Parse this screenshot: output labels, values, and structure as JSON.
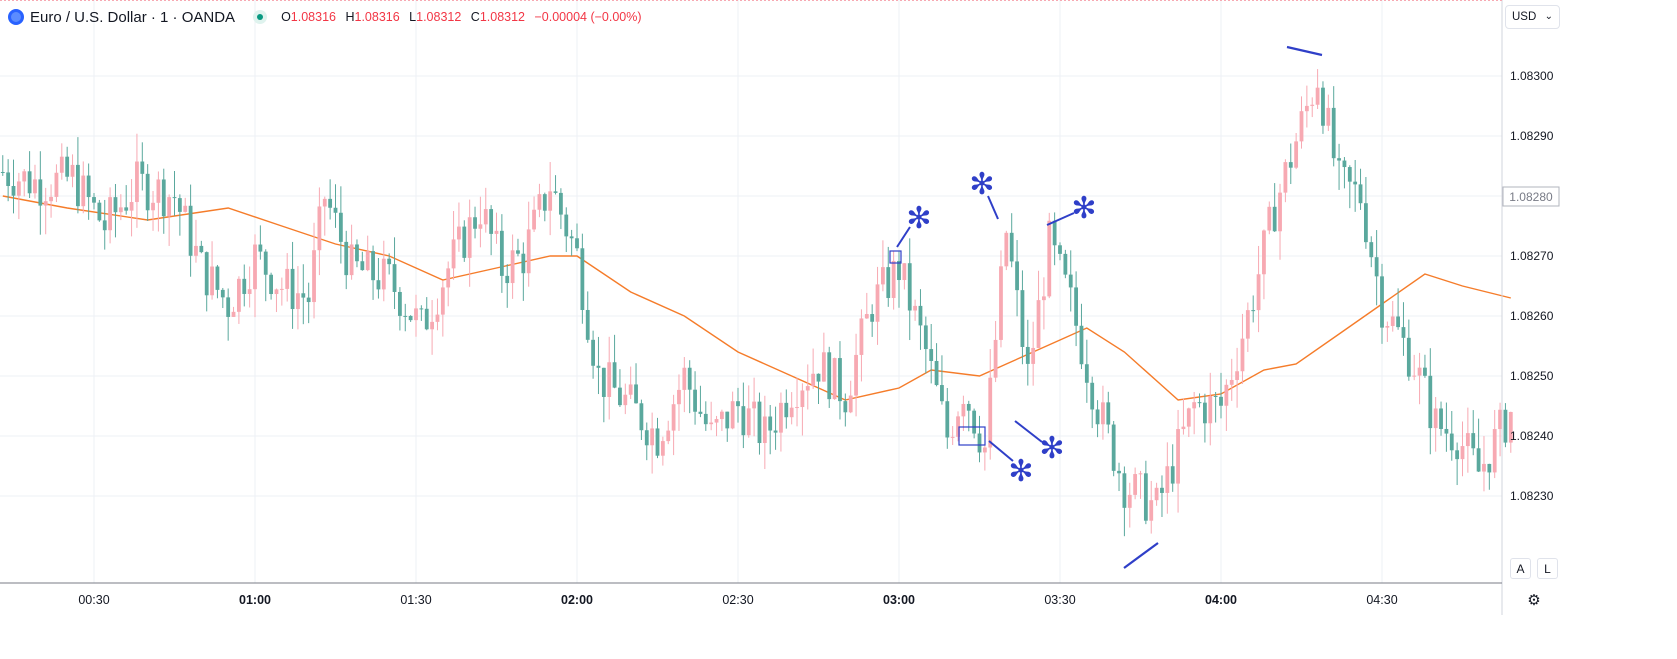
{
  "legend": {
    "title": "Euro / U.S. Dollar · 1 · OANDA",
    "open_label": "O",
    "open": "1.08316",
    "high_label": "H",
    "high": "1.08316",
    "low_label": "L",
    "low": "1.08312",
    "close_label": "C",
    "close": "1.08312",
    "change": "−0.00004 (−0.00%)"
  },
  "currency_select": {
    "value": "USD"
  },
  "price_scale": {
    "current_price_label": "1.08280",
    "auto_button": "A",
    "log_button": "L"
  },
  "colors": {
    "up": "#f7a9b2",
    "down": "#5aa89d",
    "moving_average": "#f57c2a",
    "annotation": "#2f3fc8",
    "grid": "#eef1f5"
  },
  "chart_data": {
    "type": "candlestick",
    "series": [
      {
        "name": "EURUSD 1-minute candles"
      },
      {
        "name": "Moving average"
      }
    ],
    "y_ticks": [
      "1.08300",
      "1.08290",
      "1.08280",
      "1.08270",
      "1.08260",
      "1.08250",
      "1.08240",
      "1.08230"
    ],
    "ylim": [
      1.08222,
      1.08312
    ],
    "x_ticks": [
      {
        "label": "00:30",
        "bold": false
      },
      {
        "label": "01:00",
        "bold": true
      },
      {
        "label": "01:30",
        "bold": false
      },
      {
        "label": "02:00",
        "bold": true
      },
      {
        "label": "02:30",
        "bold": false
      },
      {
        "label": "03:00",
        "bold": true
      },
      {
        "label": "03:30",
        "bold": false
      },
      {
        "label": "04:00",
        "bold": true
      },
      {
        "label": "04:30",
        "bold": false
      }
    ],
    "x_start": "00:13",
    "x_end": "04:54",
    "close_anchors": [
      [
        "00:13",
        1.08284
      ],
      [
        "00:20",
        1.08282
      ],
      [
        "00:26",
        1.08283
      ],
      [
        "00:32",
        1.08275
      ],
      [
        "00:38",
        1.08282
      ],
      [
        "00:45",
        1.0828
      ],
      [
        "00:50",
        1.08268
      ],
      [
        "00:55",
        1.08262
      ],
      [
        "01:00",
        1.0827
      ],
      [
        "01:05",
        1.08265
      ],
      [
        "01:10",
        1.08263
      ],
      [
        "01:13",
        1.0828
      ],
      [
        "01:18",
        1.08268
      ],
      [
        "01:25",
        1.08266
      ],
      [
        "01:31",
        1.08258
      ],
      [
        "01:36",
        1.08268
      ],
      [
        "01:42",
        1.08278
      ],
      [
        "01:46",
        1.08268
      ],
      [
        "01:50",
        1.0827
      ],
      [
        "01:55",
        1.08282
      ],
      [
        "02:00",
        1.0827
      ],
      [
        "02:04",
        1.0825
      ],
      [
        "02:10",
        1.08245
      ],
      [
        "02:15",
        1.0824
      ],
      [
        "02:20",
        1.0825
      ],
      [
        "02:25",
        1.0824
      ],
      [
        "02:30",
        1.08245
      ],
      [
        "02:35",
        1.0824
      ],
      [
        "02:40",
        1.08248
      ],
      [
        "02:45",
        1.08252
      ],
      [
        "02:50",
        1.08247
      ],
      [
        "02:55",
        1.08262
      ],
      [
        "03:00",
        1.08268
      ],
      [
        "03:05",
        1.08254
      ],
      [
        "03:09",
        1.0824
      ],
      [
        "03:12",
        1.08248
      ],
      [
        "03:16",
        1.08238
      ],
      [
        "03:20",
        1.08274
      ],
      [
        "03:24",
        1.0825
      ],
      [
        "03:28",
        1.08272
      ],
      [
        "03:32",
        1.08262
      ],
      [
        "03:37",
        1.08245
      ],
      [
        "03:42",
        1.08232
      ],
      [
        "03:48",
        1.08228
      ],
      [
        "03:55",
        1.08245
      ],
      [
        "04:00",
        1.08245
      ],
      [
        "04:05",
        1.0826
      ],
      [
        "04:10",
        1.08278
      ],
      [
        "04:15",
        1.08292
      ],
      [
        "04:18",
        1.083
      ],
      [
        "04:22",
        1.08282
      ],
      [
        "04:26",
        1.0828
      ],
      [
        "04:30",
        1.08262
      ],
      [
        "04:36",
        1.08252
      ],
      [
        "04:40",
        1.08242
      ],
      [
        "04:44",
        1.0824
      ],
      [
        "04:48",
        1.08234
      ],
      [
        "04:54",
        1.08244
      ]
    ],
    "moving_average": [
      [
        "00:13",
        1.0828
      ],
      [
        "00:25",
        1.08278
      ],
      [
        "00:40",
        1.08276
      ],
      [
        "00:55",
        1.08278
      ],
      [
        "01:05",
        1.08275
      ],
      [
        "01:15",
        1.08272
      ],
      [
        "01:25",
        1.0827
      ],
      [
        "01:35",
        1.08266
      ],
      [
        "01:45",
        1.08268
      ],
      [
        "01:55",
        1.0827
      ],
      [
        "02:00",
        1.0827
      ],
      [
        "02:10",
        1.08264
      ],
      [
        "02:20",
        1.0826
      ],
      [
        "02:30",
        1.08254
      ],
      [
        "02:40",
        1.0825
      ],
      [
        "02:50",
        1.08246
      ],
      [
        "03:00",
        1.08248
      ],
      [
        "03:06",
        1.08251
      ],
      [
        "03:15",
        1.0825
      ],
      [
        "03:20",
        1.08252
      ],
      [
        "03:30",
        1.08256
      ],
      [
        "03:35",
        1.08258
      ],
      [
        "03:42",
        1.08254
      ],
      [
        "03:52",
        1.08246
      ],
      [
        "04:00",
        1.08247
      ],
      [
        "04:08",
        1.08251
      ],
      [
        "04:14",
        1.08252
      ],
      [
        "04:22",
        1.08257
      ],
      [
        "04:30",
        1.08262
      ],
      [
        "04:38",
        1.08267
      ],
      [
        "04:45",
        1.08265
      ],
      [
        "04:54",
        1.08263
      ]
    ]
  }
}
